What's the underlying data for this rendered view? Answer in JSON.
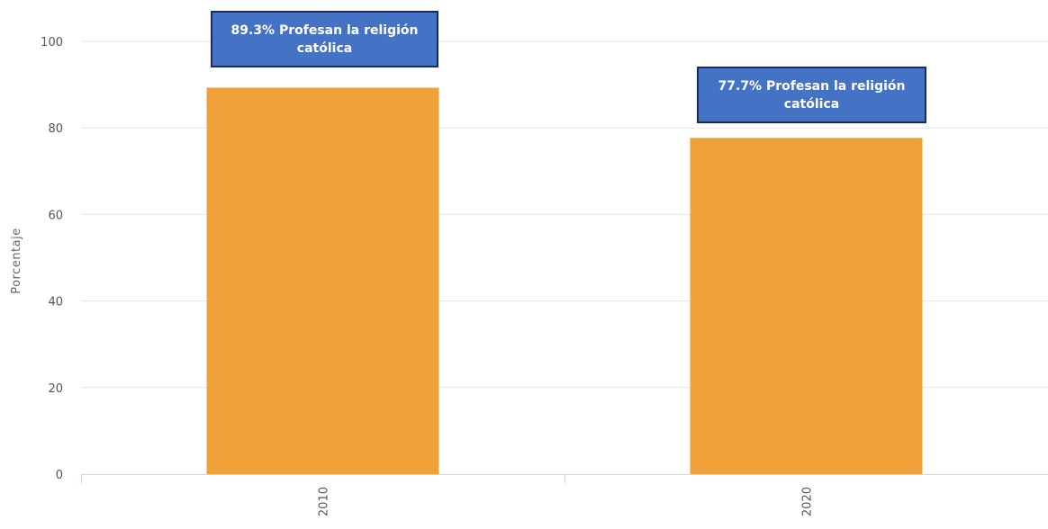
{
  "chart_data": {
    "type": "bar",
    "categories": [
      "2010",
      "2020"
    ],
    "values": [
      89.3,
      77.7
    ],
    "ylabel": "Porcentaje",
    "xlabel": "",
    "ylim": [
      0,
      100
    ],
    "yticks": [
      0,
      20,
      40,
      60,
      80,
      100
    ],
    "grid": true,
    "bar_color": "#f0a038",
    "annotation_color": "#4472c4",
    "annotations": [
      "89.3% Profesan la religión católica",
      "77.7% Profesan la religión católica"
    ]
  }
}
